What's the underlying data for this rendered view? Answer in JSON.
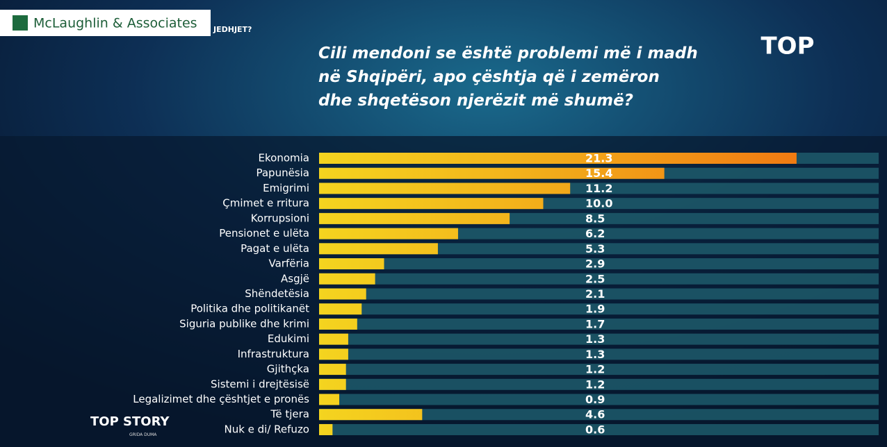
{
  "header": {
    "brand": "McLaughlin & Associates",
    "fragment": "JEDHJET?",
    "show": "TOP STORY",
    "host": "GRIDA DUMA"
  },
  "chart_data": {
    "type": "bar",
    "orientation": "horizontal",
    "title": "Cili mendoni se është problemi më i madh në Shqipëri, apo çështja që i zemëron dhe shqetëson njerëzit më shumë?",
    "categories": [
      "Ekonomia",
      "Papunësia",
      "Emigrimi",
      "Çmimet e rritura",
      "Korrupsioni",
      "Pensionet e ulëta",
      "Pagat e ulëta",
      "Varfëria",
      "Asgjë",
      "Shëndetësia",
      "Politika dhe politikanët",
      "Siguria publike dhe krimi",
      "Edukimi",
      "Infrastruktura",
      "Gjithçka",
      "Sistemi i drejtësisë",
      "Legalizimet dhe çështjet e pronës",
      "Të tjera",
      "Nuk e di/ Refuzo"
    ],
    "values": [
      21.3,
      15.4,
      11.2,
      10,
      8.5,
      6.2,
      5.3,
      2.9,
      2.5,
      2.1,
      1.9,
      1.7,
      1.3,
      1.3,
      1.2,
      1.2,
      0.9,
      4.6,
      0.6
    ],
    "value_labels": [
      "21.3",
      "15.4",
      "11.2",
      "10.0",
      "8.5",
      "6.2",
      "5.3",
      "2.9",
      "2.5",
      "2.1",
      "1.9",
      "1.7",
      "1.3",
      "1.3",
      "1.2",
      "1.2",
      "0.9",
      "4.6",
      "0.6"
    ]
  }
}
